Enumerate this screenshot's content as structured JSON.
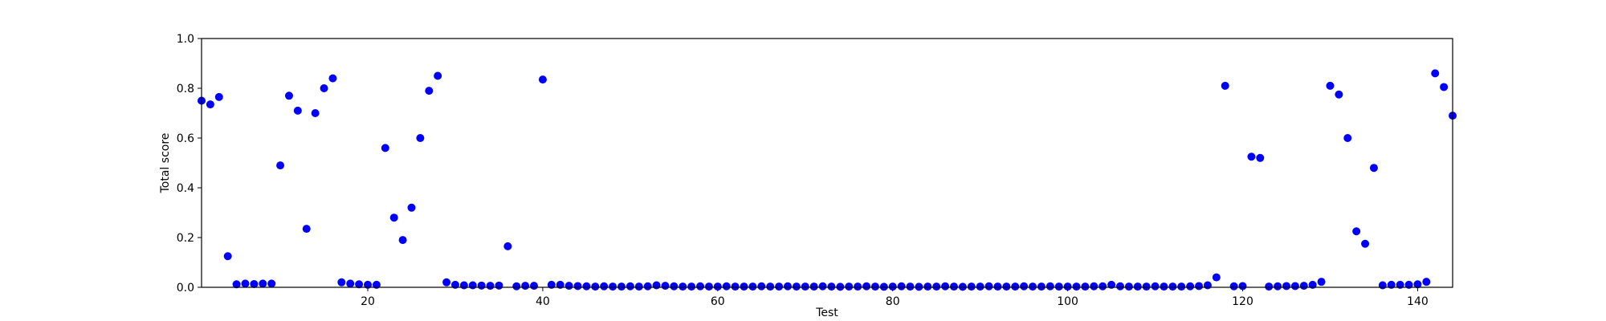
{
  "chart_data": {
    "type": "scatter",
    "title": "",
    "xlabel": "Test",
    "ylabel": "Total score",
    "xlim": [
      1,
      144
    ],
    "ylim": [
      0.0,
      1.0
    ],
    "x_ticks": [
      20,
      40,
      60,
      80,
      100,
      120,
      140
    ],
    "x_tick_labels": [
      "20",
      "40",
      "60",
      "80",
      "100",
      "120",
      "140"
    ],
    "y_ticks": [
      0.0,
      0.2,
      0.4,
      0.6,
      0.8,
      1.0
    ],
    "y_tick_labels": [
      "0.0",
      "0.2",
      "0.4",
      "0.6",
      "0.8",
      "1.0"
    ],
    "grid": false,
    "marker_color": "#0000ff",
    "series": [
      {
        "points": [
          [
            1,
            0.75
          ],
          [
            2,
            0.735
          ],
          [
            3,
            0.765
          ],
          [
            4,
            0.125
          ],
          [
            5,
            0.012
          ],
          [
            6,
            0.015
          ],
          [
            7,
            0.013
          ],
          [
            8,
            0.015
          ],
          [
            9,
            0.015
          ],
          [
            10,
            0.49
          ],
          [
            11,
            0.77
          ],
          [
            12,
            0.71
          ],
          [
            13,
            0.235
          ],
          [
            14,
            0.7
          ],
          [
            15,
            0.8
          ],
          [
            16,
            0.84
          ],
          [
            17,
            0.02
          ],
          [
            18,
            0.015
          ],
          [
            19,
            0.012
          ],
          [
            20,
            0.01
          ],
          [
            21,
            0.01
          ],
          [
            22,
            0.56
          ],
          [
            23,
            0.28
          ],
          [
            24,
            0.19
          ],
          [
            25,
            0.32
          ],
          [
            26,
            0.6
          ],
          [
            27,
            0.79
          ],
          [
            28,
            0.85
          ],
          [
            29,
            0.02
          ],
          [
            30,
            0.01
          ],
          [
            31,
            0.008
          ],
          [
            32,
            0.008
          ],
          [
            33,
            0.007
          ],
          [
            34,
            0.006
          ],
          [
            35,
            0.007
          ],
          [
            36,
            0.165
          ],
          [
            37,
            0.004
          ],
          [
            38,
            0.006
          ],
          [
            39,
            0.006
          ],
          [
            40,
            0.835
          ],
          [
            41,
            0.01
          ],
          [
            42,
            0.01
          ],
          [
            43,
            0.006
          ],
          [
            44,
            0.005
          ],
          [
            45,
            0.004
          ],
          [
            46,
            0.003
          ],
          [
            47,
            0.004
          ],
          [
            48,
            0.003
          ],
          [
            49,
            0.003
          ],
          [
            50,
            0.004
          ],
          [
            51,
            0.003
          ],
          [
            52,
            0.004
          ],
          [
            53,
            0.008
          ],
          [
            54,
            0.006
          ],
          [
            55,
            0.004
          ],
          [
            56,
            0.003
          ],
          [
            57,
            0.003
          ],
          [
            58,
            0.004
          ],
          [
            59,
            0.003
          ],
          [
            60,
            0.003
          ],
          [
            61,
            0.004
          ],
          [
            62,
            0.003
          ],
          [
            63,
            0.003
          ],
          [
            64,
            0.003
          ],
          [
            65,
            0.004
          ],
          [
            66,
            0.003
          ],
          [
            67,
            0.003
          ],
          [
            68,
            0.004
          ],
          [
            69,
            0.003
          ],
          [
            70,
            0.003
          ],
          [
            71,
            0.003
          ],
          [
            72,
            0.004
          ],
          [
            73,
            0.003
          ],
          [
            74,
            0.002
          ],
          [
            75,
            0.003
          ],
          [
            76,
            0.003
          ],
          [
            77,
            0.004
          ],
          [
            78,
            0.003
          ],
          [
            79,
            0.002
          ],
          [
            80,
            0.003
          ],
          [
            81,
            0.004
          ],
          [
            82,
            0.003
          ],
          [
            83,
            0.002
          ],
          [
            84,
            0.003
          ],
          [
            85,
            0.003
          ],
          [
            86,
            0.004
          ],
          [
            87,
            0.003
          ],
          [
            88,
            0.002
          ],
          [
            89,
            0.003
          ],
          [
            90,
            0.003
          ],
          [
            91,
            0.004
          ],
          [
            92,
            0.003
          ],
          [
            93,
            0.003
          ],
          [
            94,
            0.003
          ],
          [
            95,
            0.004
          ],
          [
            96,
            0.003
          ],
          [
            97,
            0.003
          ],
          [
            98,
            0.004
          ],
          [
            99,
            0.003
          ],
          [
            100,
            0.003
          ],
          [
            101,
            0.003
          ],
          [
            102,
            0.003
          ],
          [
            103,
            0.004
          ],
          [
            104,
            0.004
          ],
          [
            105,
            0.01
          ],
          [
            106,
            0.004
          ],
          [
            107,
            0.003
          ],
          [
            108,
            0.003
          ],
          [
            109,
            0.003
          ],
          [
            110,
            0.004
          ],
          [
            111,
            0.003
          ],
          [
            112,
            0.003
          ],
          [
            113,
            0.003
          ],
          [
            114,
            0.004
          ],
          [
            115,
            0.005
          ],
          [
            116,
            0.008
          ],
          [
            117,
            0.04
          ],
          [
            118,
            0.81
          ],
          [
            119,
            0.004
          ],
          [
            120,
            0.005
          ],
          [
            121,
            0.525
          ],
          [
            122,
            0.52
          ],
          [
            123,
            0.003
          ],
          [
            124,
            0.004
          ],
          [
            125,
            0.005
          ],
          [
            126,
            0.005
          ],
          [
            127,
            0.006
          ],
          [
            128,
            0.01
          ],
          [
            129,
            0.022
          ],
          [
            130,
            0.81
          ],
          [
            131,
            0.775
          ],
          [
            132,
            0.6
          ],
          [
            133,
            0.225
          ],
          [
            134,
            0.175
          ],
          [
            135,
            0.48
          ],
          [
            136,
            0.008
          ],
          [
            137,
            0.01
          ],
          [
            138,
            0.01
          ],
          [
            139,
            0.01
          ],
          [
            140,
            0.012
          ],
          [
            141,
            0.022
          ],
          [
            142,
            0.86
          ],
          [
            143,
            0.805
          ],
          [
            144,
            0.69
          ]
        ]
      }
    ]
  }
}
